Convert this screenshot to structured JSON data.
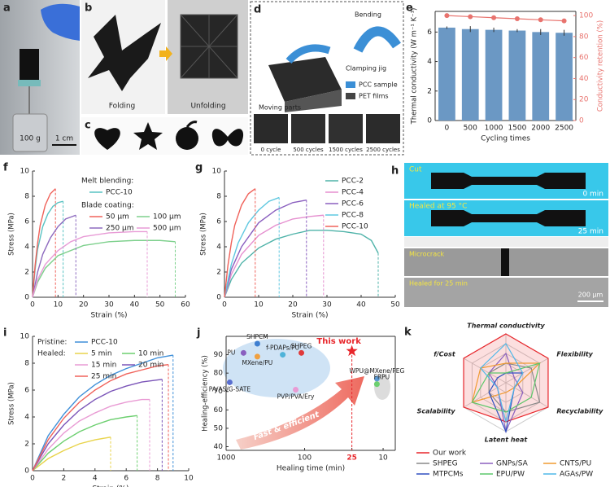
{
  "panels": {
    "a": {
      "letter": "a",
      "weight": "100 g",
      "scale": "1 cm"
    },
    "b": {
      "letter": "b",
      "left": "Folding",
      "right": "Unfolding"
    },
    "c": {
      "letter": "c"
    },
    "d": {
      "letter": "d",
      "bending": "Bending",
      "jig": "Clamping jig",
      "moving": "Moving parts",
      "legend": [
        "PCC sample",
        "PET films"
      ],
      "cycles": [
        "0 cycle",
        "500 cycles",
        "1500 cycles",
        "2500 cycles"
      ]
    },
    "h": {
      "letter": "h",
      "cut": "Cut",
      "t0": "0 min",
      "healed": "Healed at 95 °C",
      "t25": "25 min",
      "crack": "Microcrack",
      "healed_micro": "Healed for 25 min",
      "scale": "200 μm"
    }
  },
  "chart_data": [
    {
      "panel": "e",
      "type": "bar",
      "xlabel": "Cycling times",
      "ylabel": "Thermal conductivity (W m⁻¹ K⁻¹)",
      "y2label": "Conductivity retention (%)",
      "categories": [
        "0",
        "500",
        "1000",
        "1500",
        "2000",
        "2500"
      ],
      "series": [
        {
          "color": "#6b98c4",
          "values": [
            6.3,
            6.2,
            6.15,
            6.1,
            6.0,
            5.95
          ],
          "errors": [
            0.08,
            0.2,
            0.15,
            0.1,
            0.2,
            0.2
          ]
        },
        {
          "color": "#e8736e",
          "axis": "y2",
          "values": [
            100,
            99,
            98,
            97,
            96,
            95
          ]
        }
      ],
      "ylim": [
        0,
        7.4
      ],
      "yticks": [
        0,
        2,
        4,
        6
      ],
      "y2lim": [
        0,
        104
      ],
      "y2ticks": [
        0,
        20,
        40,
        60,
        80,
        100
      ]
    },
    {
      "panel": "f",
      "type": "line",
      "xlabel": "Strain (%)",
      "ylabel": "Stress (MPa)",
      "legend_headings": [
        "Melt blending:",
        "Blade coating:"
      ],
      "xlim": [
        0,
        60
      ],
      "xticks": [
        0,
        10,
        20,
        30,
        40,
        50,
        60
      ],
      "ylim": [
        0,
        10
      ],
      "yticks": [
        0,
        2,
        4,
        6,
        8,
        10
      ],
      "series": [
        {
          "name": "PCC-10",
          "color": "#59c3c3",
          "x": [
            0,
            1,
            2,
            4,
            6,
            8,
            10,
            12
          ],
          "values": [
            0,
            2.2,
            3.8,
            5.6,
            6.6,
            7.2,
            7.5,
            7.6
          ]
        },
        {
          "name": "50 μm",
          "color": "#f0625a",
          "x": [
            0,
            1,
            2,
            3,
            5,
            7,
            9
          ],
          "values": [
            0,
            2.5,
            4.3,
            5.7,
            7.3,
            8.2,
            8.6
          ]
        },
        {
          "name": "100 μm",
          "color": "#7dd08c",
          "x": [
            0,
            2,
            5,
            10,
            20,
            30,
            40,
            50,
            56
          ],
          "values": [
            0,
            1.2,
            2.3,
            3.3,
            4.1,
            4.4,
            4.5,
            4.5,
            4.4
          ]
        },
        {
          "name": "250 μm",
          "color": "#8e6bbf",
          "x": [
            0,
            2,
            4,
            7,
            10,
            13,
            17
          ],
          "values": [
            0,
            2,
            3.4,
            4.7,
            5.6,
            6.2,
            6.5
          ]
        },
        {
          "name": "500 μm",
          "color": "#e89bd6",
          "x": [
            0,
            2,
            5,
            10,
            15,
            20,
            30,
            40,
            45
          ],
          "values": [
            0,
            1.4,
            2.6,
            3.7,
            4.4,
            4.8,
            5.1,
            5.2,
            5.2
          ]
        }
      ]
    },
    {
      "panel": "g",
      "type": "line",
      "xlabel": "Strain (%)",
      "ylabel": "Stress (MPa)",
      "xlim": [
        0,
        50
      ],
      "xticks": [
        0,
        10,
        20,
        30,
        40,
        50
      ],
      "ylim": [
        0,
        10
      ],
      "yticks": [
        0,
        2,
        4,
        6,
        8,
        10
      ],
      "series": [
        {
          "name": "PCC-2",
          "color": "#4fb3a9",
          "x": [
            0,
            2,
            5,
            10,
            15,
            20,
            25,
            30,
            35,
            40,
            43,
            45
          ],
          "values": [
            0,
            1.4,
            2.7,
            3.9,
            4.6,
            5.0,
            5.3,
            5.3,
            5.2,
            5.0,
            4.5,
            3.5
          ]
        },
        {
          "name": "PCC-4",
          "color": "#e58fcf",
          "x": [
            0,
            2,
            5,
            10,
            15,
            20,
            25,
            29
          ],
          "values": [
            0,
            1.8,
            3.4,
            4.9,
            5.7,
            6.2,
            6.4,
            6.5
          ]
        },
        {
          "name": "PCC-6",
          "color": "#8a5fbf",
          "x": [
            0,
            2,
            5,
            10,
            15,
            20,
            24
          ],
          "values": [
            0,
            2.2,
            4.0,
            5.9,
            6.9,
            7.5,
            7.7
          ]
        },
        {
          "name": "PCC-8",
          "color": "#5fc8e0",
          "x": [
            0,
            2,
            4,
            7,
            10,
            13,
            16
          ],
          "values": [
            0,
            2.6,
            4.3,
            5.9,
            6.9,
            7.6,
            7.9
          ]
        },
        {
          "name": "PCC-10",
          "color": "#f0625a",
          "x": [
            0,
            1,
            2,
            3,
            5,
            7,
            9
          ],
          "values": [
            0,
            2.5,
            4.3,
            5.7,
            7.3,
            8.2,
            8.6
          ]
        }
      ]
    },
    {
      "panel": "i",
      "type": "line",
      "xlabel": "Strain (%)",
      "ylabel": "Stress (MPa)",
      "legend_headings": [
        "Pristine:",
        "Healed:"
      ],
      "xlim": [
        0,
        10
      ],
      "xticks": [
        0,
        2,
        4,
        6,
        8,
        10
      ],
      "ylim": [
        0,
        10
      ],
      "yticks": [
        0,
        2,
        4,
        6,
        8,
        10
      ],
      "series": [
        {
          "name": "PCC-10",
          "color": "#3f8fd8",
          "x": [
            0,
            1,
            2,
            3,
            4,
            5,
            6,
            7,
            8,
            9
          ],
          "values": [
            0,
            2.6,
            4.2,
            5.5,
            6.4,
            7.1,
            7.6,
            8.0,
            8.4,
            8.6
          ]
        },
        {
          "name": "5 min",
          "color": "#e8d34a",
          "x": [
            0,
            1,
            2,
            3,
            4,
            5
          ],
          "values": [
            0,
            0.9,
            1.5,
            2.0,
            2.3,
            2.5
          ]
        },
        {
          "name": "10 min",
          "color": "#6ccf6f",
          "x": [
            0,
            1,
            2,
            3,
            4,
            5,
            6,
            6.7
          ],
          "values": [
            0,
            1.3,
            2.2,
            2.9,
            3.4,
            3.8,
            4.0,
            4.1
          ]
        },
        {
          "name": "15 min",
          "color": "#e99bd4",
          "x": [
            0,
            1,
            2,
            3,
            4,
            5,
            6,
            7,
            7.5
          ],
          "values": [
            0,
            1.6,
            2.8,
            3.7,
            4.3,
            4.8,
            5.1,
            5.3,
            5.3
          ]
        },
        {
          "name": "20 min",
          "color": "#7b55b8",
          "x": [
            0,
            1,
            2,
            3,
            4,
            5,
            6,
            7,
            8.3
          ],
          "values": [
            0,
            2.0,
            3.4,
            4.5,
            5.3,
            5.9,
            6.3,
            6.6,
            6.8
          ]
        },
        {
          "name": "25 min",
          "color": "#f0625a",
          "x": [
            0,
            1,
            2,
            3,
            4,
            5,
            6,
            7,
            8,
            8.7
          ],
          "values": [
            0,
            2.3,
            3.9,
            5.1,
            6.0,
            6.7,
            7.2,
            7.5,
            7.8,
            7.9
          ]
        }
      ]
    },
    {
      "panel": "j",
      "type": "scatter",
      "xlabel": "Healing time (min)",
      "ylabel": "Healing-efficiency (%)",
      "annotation": "Fast & efficient",
      "xscale": "log",
      "xlim": [
        1000,
        7
      ],
      "xticks": [
        1000,
        100,
        25,
        10
      ],
      "highlight_tick": 2,
      "ylim": [
        38,
        100
      ],
      "yticks": [
        40,
        50,
        60,
        70,
        80,
        90
      ],
      "points": [
        {
          "name": "SHPCM",
          "x": 400,
          "y": 96,
          "color": "#3f7fd0"
        },
        {
          "name": "PU",
          "x": 600,
          "y": 91,
          "color": "#8a5fbf"
        },
        {
          "name": "MXene/PU",
          "x": 400,
          "y": 89,
          "color": "#f0a040"
        },
        {
          "name": "f-PDAPs/PU",
          "x": 190,
          "y": 90,
          "color": "#4fb3d9"
        },
        {
          "name": "SHPEG",
          "x": 110,
          "y": 91,
          "color": "#e03a3a"
        },
        {
          "name": "PA/AS/G-SATE",
          "x": 900,
          "y": 75,
          "color": "#5a6fd0"
        },
        {
          "name": "PVP/PVA/Ery",
          "x": 130,
          "y": 71,
          "color": "#e99bd4"
        },
        {
          "name": "WPU@MXene/PEG",
          "x": 12,
          "y": 77,
          "color": "#5b9bd5"
        },
        {
          "name": "FRPU",
          "x": 12,
          "y": 74,
          "color": "#6ccf6f"
        },
        {
          "name": "This work",
          "x": 25,
          "y": 92,
          "color": "#e8262b",
          "marker": "star"
        }
      ]
    },
    {
      "panel": "k",
      "type": "radar",
      "axes": [
        "Thermal conductivity",
        "Flexibility",
        "Recyclability",
        "Latent heat",
        "Scalability",
        "f/Cost"
      ],
      "rlim": [
        0,
        5
      ],
      "series": [
        {
          "name": "Our work",
          "color": "#e8262b",
          "values": [
            5,
            5,
            5,
            4,
            5,
            5
          ]
        },
        {
          "name": "SHPEG",
          "color": "#888888",
          "values": [
            2,
            3,
            4,
            3,
            2,
            2
          ]
        },
        {
          "name": "GNPs/SA",
          "color": "#8a5fbf",
          "values": [
            3,
            1,
            2,
            5,
            1,
            2
          ]
        },
        {
          "name": "CNTS/PU",
          "color": "#f09a30",
          "values": [
            2,
            4,
            1,
            1,
            4,
            3
          ]
        },
        {
          "name": "MTPCMs",
          "color": "#2f4fc0",
          "values": [
            1,
            2,
            1,
            5,
            2,
            1
          ]
        },
        {
          "name": "EPU/PW",
          "color": "#5cc86a",
          "values": [
            1,
            4,
            3,
            3,
            4,
            2
          ]
        },
        {
          "name": "AGAs/PW",
          "color": "#4fb8e8",
          "values": [
            4,
            2,
            1,
            4,
            1,
            3
          ]
        }
      ]
    }
  ]
}
